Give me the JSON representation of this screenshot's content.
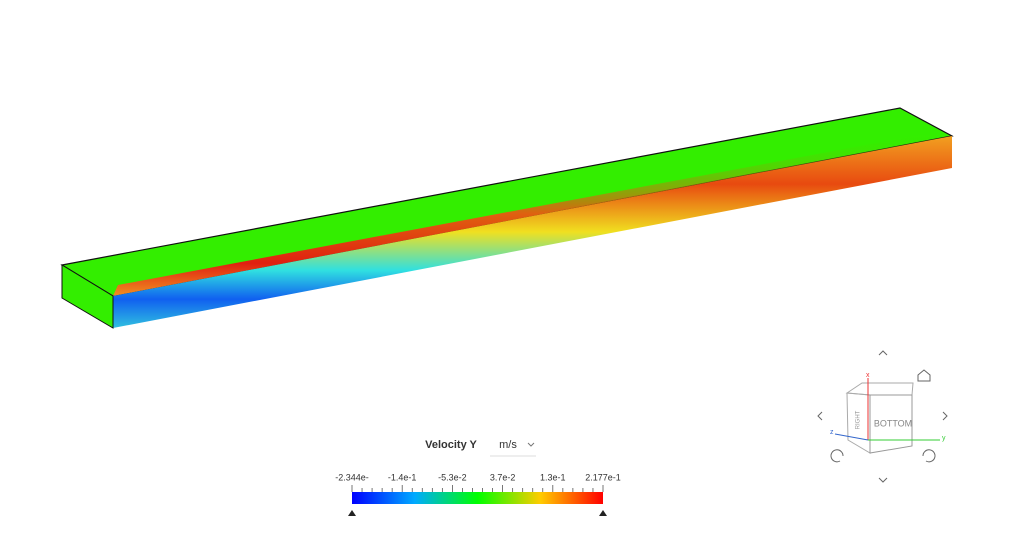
{
  "legend": {
    "title": "Velocity Y",
    "unit": "m/s",
    "labels": [
      "-2.344e-",
      "-1.4e-1",
      "-5.3e-2",
      "3.7e-2",
      "1.3e-1",
      "2.177e-1"
    ]
  },
  "view_cube": {
    "face_label": "BOTTOM",
    "side_label": "RIGHT",
    "axes": [
      "x",
      "y",
      "z"
    ]
  }
}
